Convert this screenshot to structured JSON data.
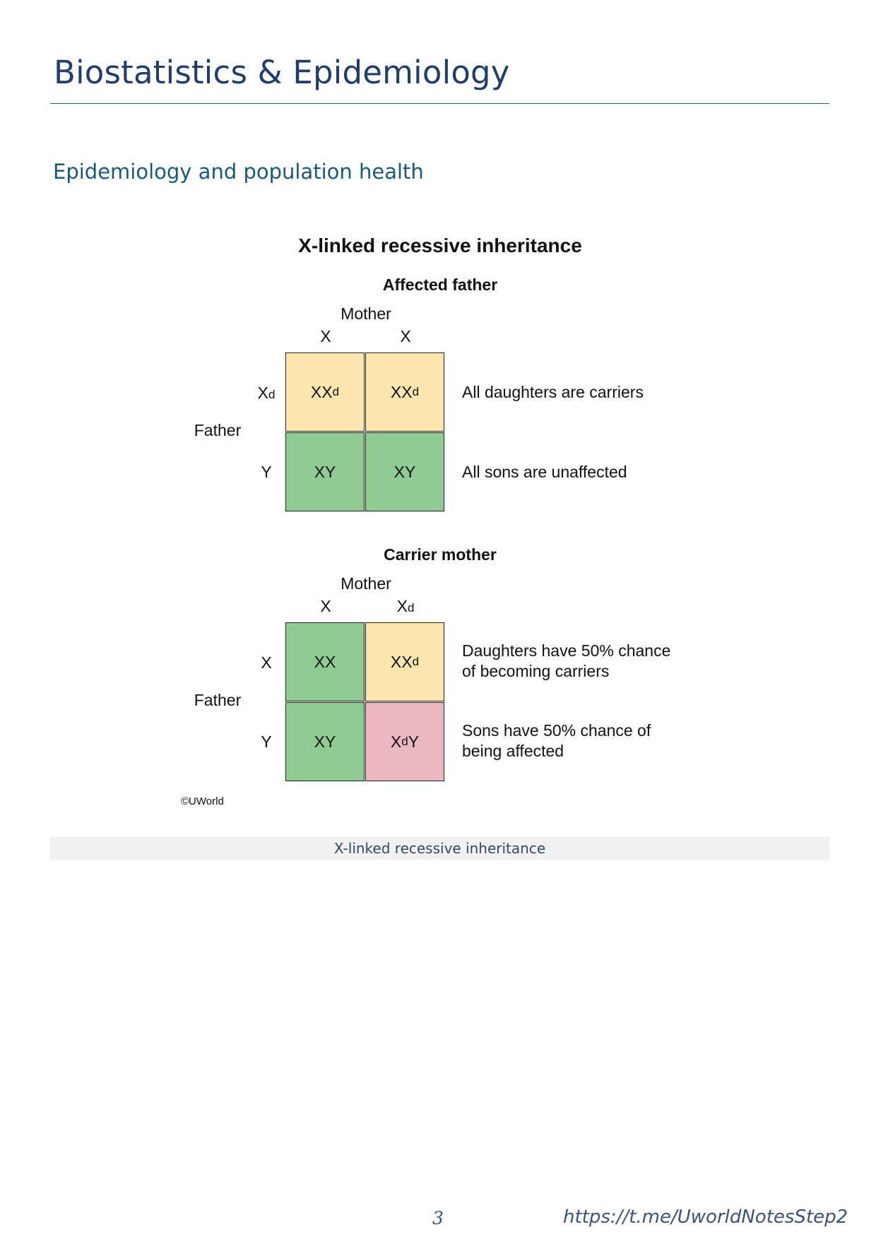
{
  "header": {
    "title": "Biostatistics & Epidemiology",
    "section": "Epidemiology and population health"
  },
  "figure": {
    "title": "X-linked recessive inheritance",
    "panels": [
      {
        "title": "Affected father",
        "mother_label": "Mother",
        "father_label": "Father",
        "columns": [
          {
            "base": "X",
            "sub": ""
          },
          {
            "base": "X",
            "sub": ""
          }
        ],
        "rows": [
          {
            "base": "X",
            "sub": "d"
          },
          {
            "base": "Y",
            "sub": ""
          }
        ],
        "cells": [
          [
            {
              "base": "XX",
              "sub": "d",
              "tail": "",
              "color": "#fbe6ad"
            },
            {
              "base": "XX",
              "sub": "d",
              "tail": "",
              "color": "#fbe6ad"
            }
          ],
          [
            {
              "base": "XY",
              "sub": "",
              "tail": "",
              "color": "#8fcb93"
            },
            {
              "base": "XY",
              "sub": "",
              "tail": "",
              "color": "#8fcb93"
            }
          ]
        ],
        "notes": [
          [
            "All daughters are carriers"
          ],
          [
            "All sons are unaffected"
          ]
        ]
      },
      {
        "title": "Carrier mother",
        "mother_label": "Mother",
        "father_label": "Father",
        "columns": [
          {
            "base": "X",
            "sub": ""
          },
          {
            "base": "X",
            "sub": "d"
          }
        ],
        "rows": [
          {
            "base": "X",
            "sub": ""
          },
          {
            "base": "Y",
            "sub": ""
          }
        ],
        "cells": [
          [
            {
              "base": "XX",
              "sub": "",
              "tail": "",
              "color": "#8fcb93"
            },
            {
              "base": "XX",
              "sub": "d",
              "tail": "",
              "color": "#fbe6ad"
            }
          ],
          [
            {
              "base": "XY",
              "sub": "",
              "tail": "",
              "color": "#8fcb93"
            },
            {
              "base": "X",
              "sub": "d",
              "tail": "Y",
              "color": "#e9b8c1"
            }
          ]
        ],
        "notes": [
          [
            "Daughters have 50% chance",
            "of becoming carriers"
          ],
          [
            "Sons have 50% chance of",
            "being affected"
          ]
        ]
      }
    ],
    "copyright": "©UWorld",
    "caption": "X-linked recessive inheritance"
  },
  "footer": {
    "page_number": "3",
    "link": "https://t.me/UworldNotesStep2"
  }
}
